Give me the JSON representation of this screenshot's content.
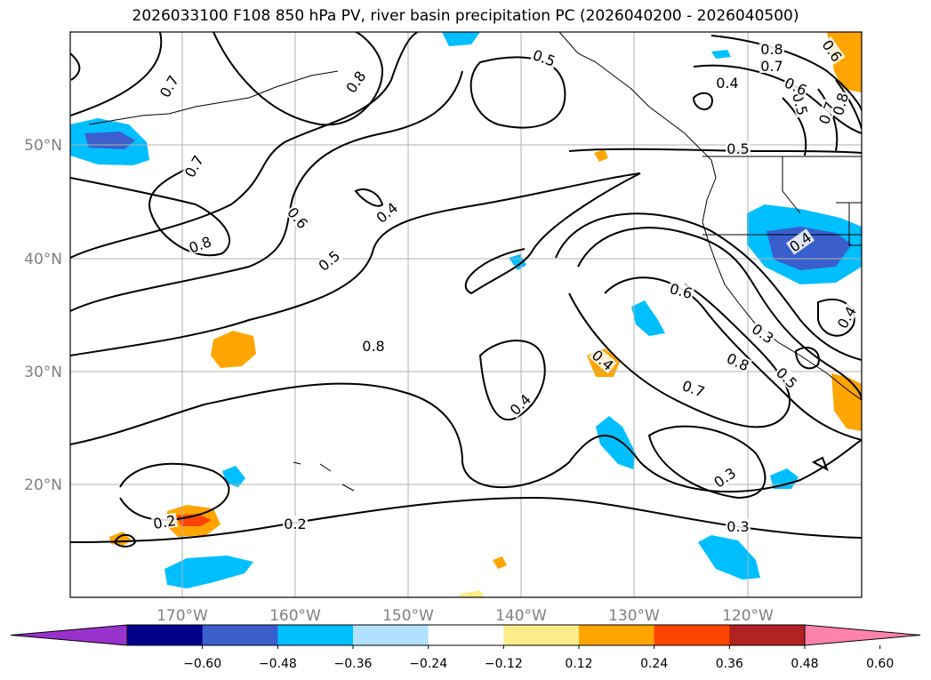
{
  "title": "2026033100 F108 850 hPa PV, river basin precipitation PC (2026040200 - 2026040500)",
  "map": {
    "lon_ticks": [
      "170°W",
      "160°W",
      "150°W",
      "140°W",
      "130°W",
      "120°W"
    ],
    "lat_ticks": [
      "50°N",
      "40°N",
      "30°N",
      "20°N"
    ],
    "pv_contour_labels": [
      "0.2",
      "0.2",
      "0.3",
      "0.3",
      "0.3",
      "0.4",
      "0.4",
      "0.4",
      "0.4",
      "0.4",
      "0.4",
      "0.5",
      "0.5",
      "0.5",
      "0.5",
      "0.5",
      "0.6",
      "0.6",
      "0.6",
      "0.6",
      "0.7",
      "0.7",
      "0.7",
      "0.7",
      "0.7",
      "0.8",
      "0.8",
      "0.8",
      "0.8",
      "0.8",
      "0.8"
    ],
    "colors": {
      "pv_contour": "#000000",
      "grid": "#b0b0b0",
      "coast": "#000000"
    }
  },
  "colorbar": {
    "ticks": [
      "−0.60",
      "−0.48",
      "−0.36",
      "−0.24",
      "−0.12",
      "0.12",
      "0.24",
      "0.36",
      "0.48",
      "0.60"
    ],
    "colors": [
      "#9932cc",
      "#00008b",
      "#3a5fcd",
      "#00bfff",
      "#b0e2ff",
      "#ffffff",
      "#ffec8b",
      "#ffa500",
      "#ff4500",
      "#b22222",
      "#ff82ab"
    ],
    "extend": "both"
  }
}
